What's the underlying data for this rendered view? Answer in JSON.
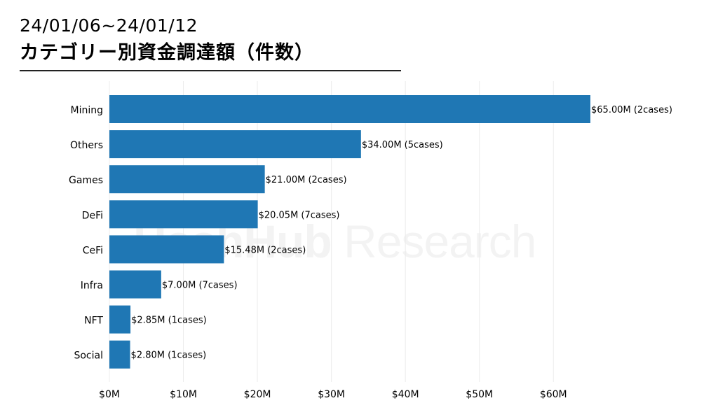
{
  "header": {
    "date_range": "24/01/06~24/01/12",
    "title": "カテゴリー別資金調達額（件数）"
  },
  "watermark": {
    "brand": "HashHub",
    "suffix": "Research"
  },
  "colors": {
    "bar": "#1f77b4",
    "grid": "#ececec",
    "text": "#000000"
  },
  "chart_data": {
    "type": "bar",
    "orientation": "horizontal",
    "title": "カテゴリー別資金調達額（件数）",
    "xlabel": "",
    "ylabel": "",
    "categories": [
      "Mining",
      "Others",
      "Games",
      "DeFi",
      "CeFi",
      "Infra",
      "NFT",
      "Social"
    ],
    "values": [
      65.0,
      34.0,
      21.0,
      20.05,
      15.48,
      7.0,
      2.85,
      2.8
    ],
    "cases": [
      2,
      5,
      2,
      7,
      2,
      7,
      1,
      1
    ],
    "data_labels": [
      "$65.00M (2cases)",
      "$34.00M (5cases)",
      "$21.00M (2cases)",
      "$20.05M (7cases)",
      "$15.48M (2cases)",
      "$7.00M (7cases)",
      "$2.85M (1cases)",
      "$2.80M (1cases)"
    ],
    "xticks": [
      0,
      10,
      20,
      30,
      40,
      50,
      60
    ],
    "xtick_labels": [
      "$0M",
      "$10M",
      "$20M",
      "$30M",
      "$40M",
      "$50M",
      "$60M"
    ],
    "xlim": [
      0,
      65
    ],
    "grid": "vertical",
    "legend": "none"
  }
}
